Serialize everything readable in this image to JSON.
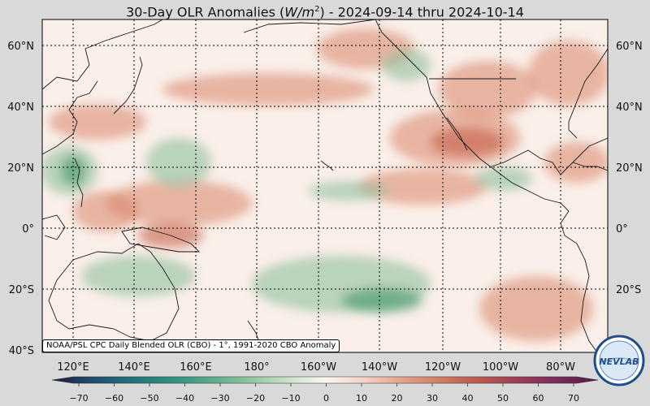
{
  "title": {
    "prefix": "30-Day OLR Anomalies (",
    "units": "W/m",
    "units_sup": "2",
    "suffix": ") - 2024-09-14 thru 2024-10-14"
  },
  "map": {
    "lat_labels": [
      "60°N",
      "40°N",
      "20°N",
      "0°",
      "20°S",
      "40°S"
    ],
    "lon_labels": [
      "120°E",
      "140°E",
      "160°E",
      "180°",
      "160°W",
      "140°W",
      "120°W",
      "100°W",
      "80°W"
    ],
    "colors": {
      "ocean_base": "#faefe9",
      "positive": "#d98467",
      "positive_strong": "#c5604a",
      "negative": "#8fc09c",
      "negative_strong": "#3f9468",
      "coast": "#1a1a1a",
      "grid": "#000000"
    }
  },
  "credit": "NOAA/PSL CPC Daily Blended OLR (CBO) - 1°, 1991-2020 CBO Anomaly",
  "colorbar": {
    "ticks": [
      "−70",
      "−60",
      "−50",
      "−40",
      "−30",
      "−20",
      "−10",
      "0",
      "10",
      "20",
      "30",
      "40",
      "50",
      "60",
      "70"
    ],
    "colors": [
      "#1b1b3a",
      "#234a6e",
      "#23707a",
      "#2d8f7f",
      "#56a88a",
      "#8bc29d",
      "#c9e0c9",
      "#fbf5f2",
      "#f3d2c5",
      "#e2a08b",
      "#cf7a64",
      "#b9574f",
      "#9a3d57",
      "#7a2a5a",
      "#4e1b45"
    ]
  },
  "logo": {
    "text": "NEVLAB",
    "icon": "noaa-psl-nevlab-logo"
  }
}
